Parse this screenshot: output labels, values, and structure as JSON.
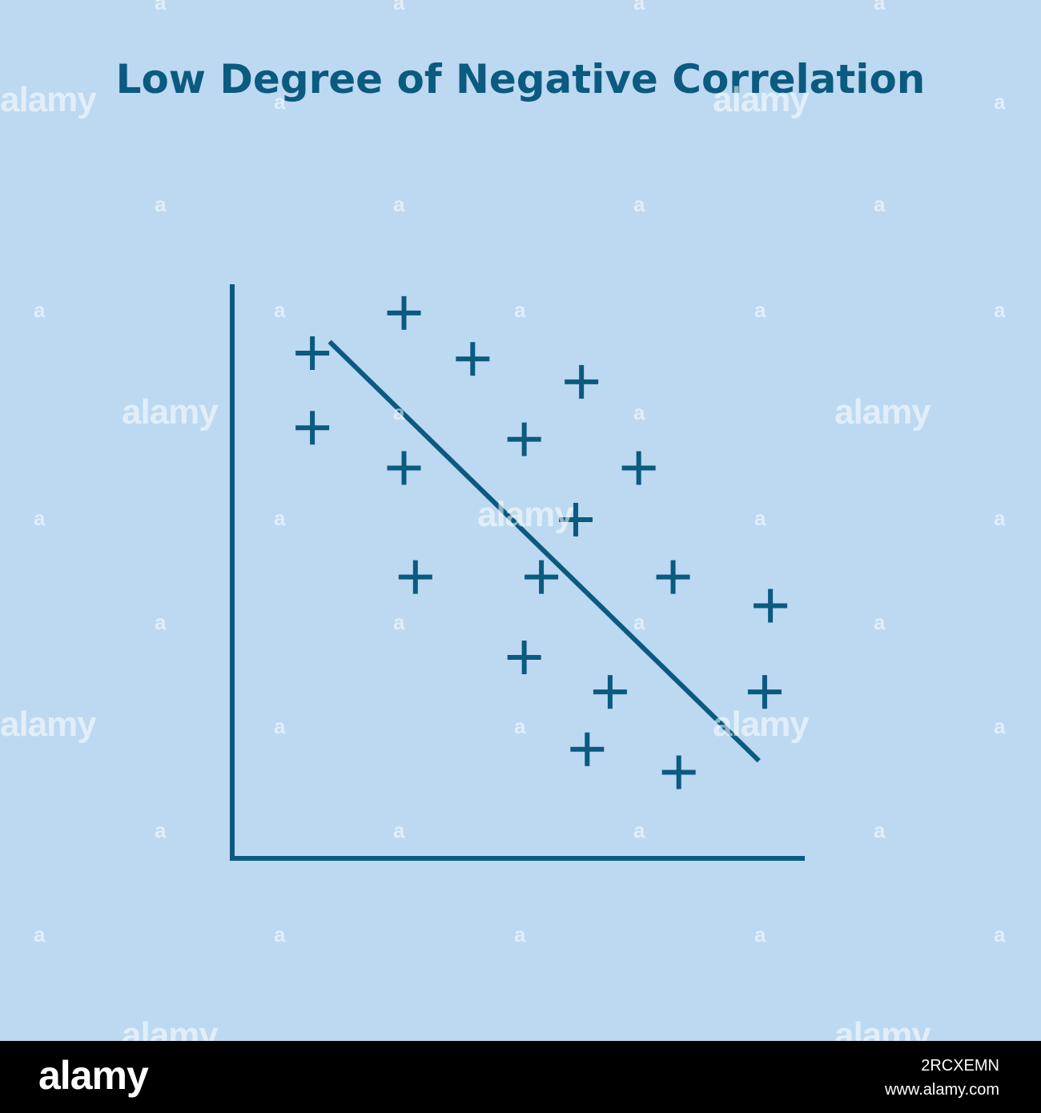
{
  "chart_data": {
    "type": "scatter",
    "title": "Low Degree of Negative Correlation",
    "xlabel": "",
    "ylabel": "",
    "xlim": [
      0,
      10
    ],
    "ylim": [
      0,
      10
    ],
    "grid": false,
    "marker": "plus",
    "points": [
      {
        "x": 1.4,
        "y": 8.8
      },
      {
        "x": 3.0,
        "y": 9.5
      },
      {
        "x": 4.2,
        "y": 8.7
      },
      {
        "x": 6.1,
        "y": 8.3
      },
      {
        "x": 1.4,
        "y": 7.5
      },
      {
        "x": 5.1,
        "y": 7.3
      },
      {
        "x": 3.0,
        "y": 6.8
      },
      {
        "x": 7.1,
        "y": 6.8
      },
      {
        "x": 6.0,
        "y": 5.9
      },
      {
        "x": 3.2,
        "y": 4.9
      },
      {
        "x": 5.4,
        "y": 4.9
      },
      {
        "x": 7.7,
        "y": 4.9
      },
      {
        "x": 9.4,
        "y": 4.4
      },
      {
        "x": 5.1,
        "y": 3.5
      },
      {
        "x": 6.6,
        "y": 2.9
      },
      {
        "x": 9.3,
        "y": 2.9
      },
      {
        "x": 6.2,
        "y": 1.9
      },
      {
        "x": 7.8,
        "y": 1.5
      }
    ],
    "trend_line": {
      "x": [
        1.7,
        9.2
      ],
      "y": [
        9.0,
        1.7
      ]
    },
    "colors": {
      "background": "#bcd9f1",
      "ink": "#0b5a80"
    }
  },
  "watermark": {
    "word": "alamy",
    "letter": "a"
  },
  "footer": {
    "logo": "alamy",
    "image_id": "2RCXEMN",
    "url": "www.alamy.com"
  }
}
